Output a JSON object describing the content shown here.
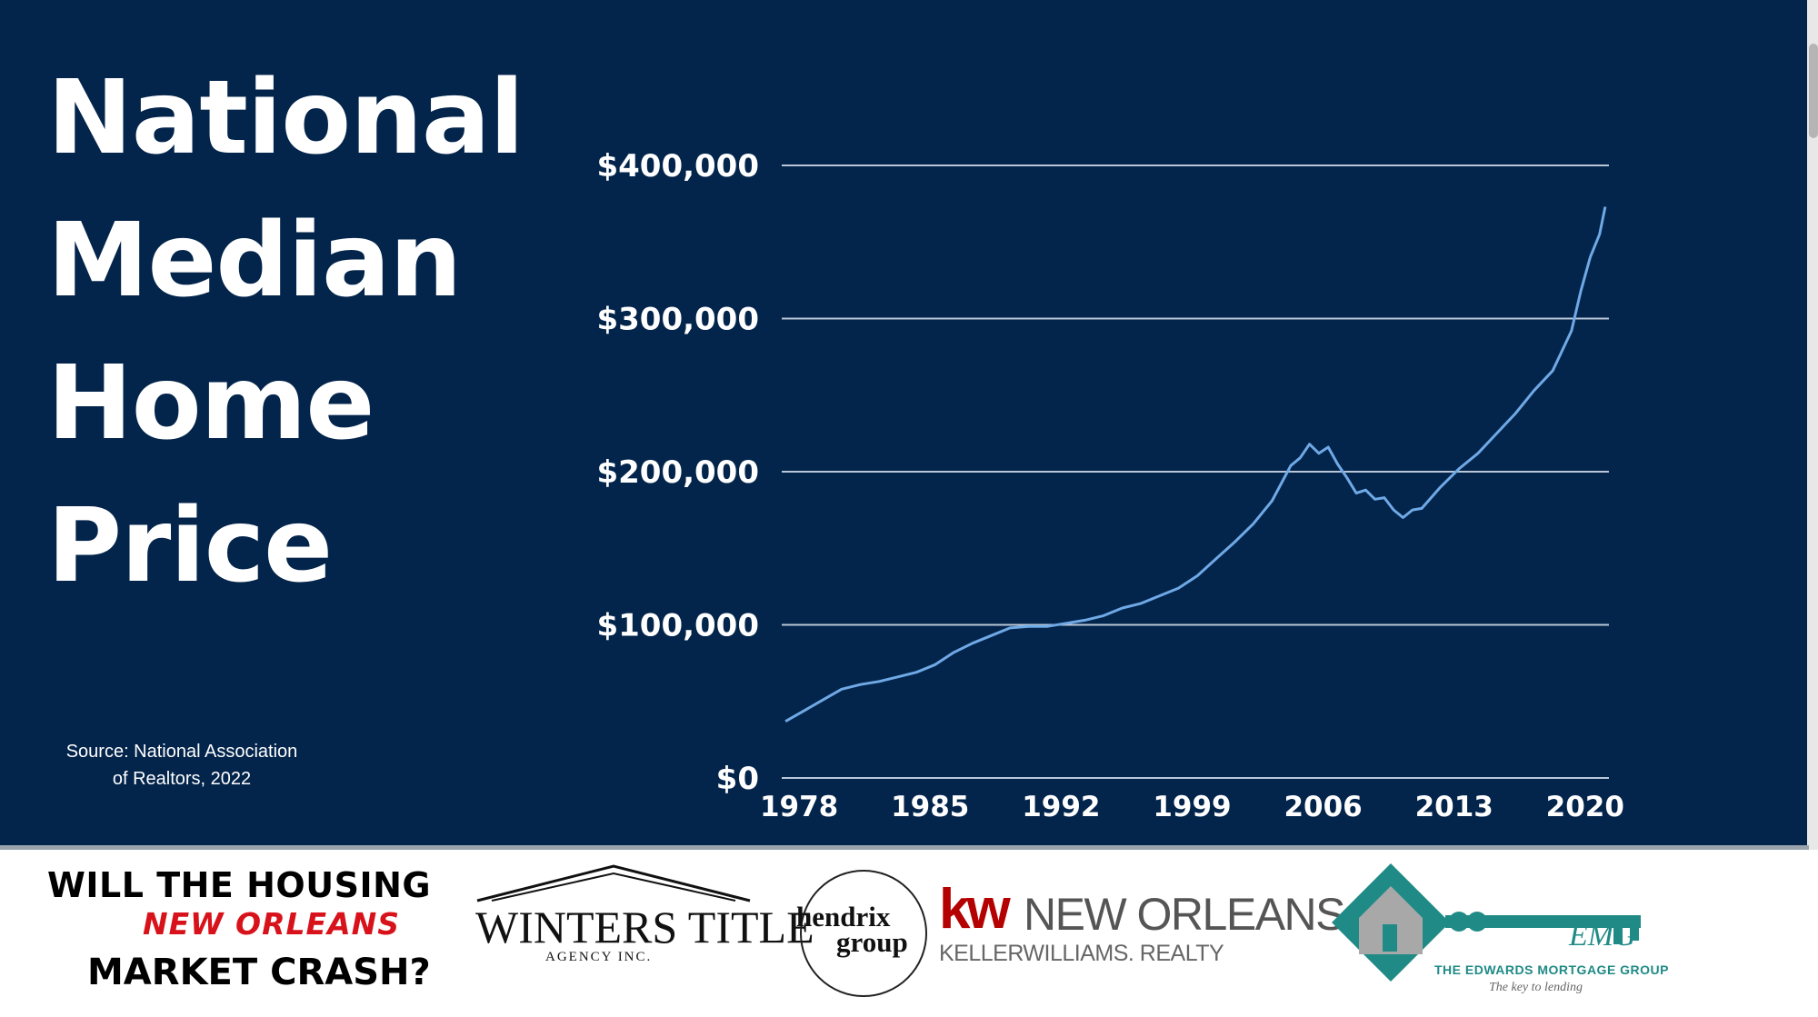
{
  "slide": {
    "title_lines": [
      "National",
      "Median",
      "Home",
      "Price"
    ],
    "source_lines": [
      "Source: National Association",
      "of Realtors, 2022"
    ]
  },
  "colors": {
    "background": "#03244b",
    "line": "#6fa9e6",
    "gridline": "#b9c7d8",
    "text": "#ffffff"
  },
  "chart_data": {
    "type": "line",
    "title": "National Median Home Price",
    "xlabel": "",
    "ylabel": "",
    "ylim": [
      0,
      400000
    ],
    "xlim": [
      1977.8,
      2022.0
    ],
    "y_ticks": [
      0,
      100000,
      200000,
      300000,
      400000
    ],
    "y_tick_labels": [
      "$0",
      "$100,000",
      "$200,000",
      "$300,000",
      "$400,000"
    ],
    "x_ticks": [
      1978,
      1985,
      1992,
      1999,
      2006,
      2013,
      2020
    ],
    "x_tick_labels": [
      "1978",
      "1985",
      "1992",
      "1999",
      "2006",
      "2013",
      "2020"
    ],
    "grid": true,
    "legend": "none",
    "series": [
      {
        "x": [
          1978.0,
          1979.0,
          1980.0,
          1981.0,
          1982.0,
          1983.0,
          1984.0,
          1985.0,
          1986.0,
          1987.0,
          1988.0,
          1989.0,
          1990.0,
          1991.0,
          1992.0,
          1993.0,
          1994.0,
          1995.0,
          1996.0,
          1997.0,
          1998.0,
          1999.0,
          2000.0,
          2001.0,
          2002.0,
          2003.0,
          2004.0,
          2005.0,
          2005.5,
          2006.0,
          2006.5,
          2007.0,
          2007.5,
          2008.0,
          2008.5,
          2009.0,
          2009.5,
          2010.0,
          2010.5,
          2011.0,
          2011.5,
          2012.0,
          2012.5,
          2013.0,
          2014.0,
          2015.0,
          2016.0,
          2017.0,
          2018.0,
          2019.0,
          2020.0,
          2020.5,
          2021.0,
          2021.5,
          2021.8
        ],
        "y": [
          37000,
          44000,
          51000,
          58000,
          61000,
          63000,
          66000,
          69000,
          74000,
          82000,
          88000,
          93000,
          98000,
          99000,
          99000,
          101000,
          103000,
          106000,
          111000,
          114000,
          119000,
          124000,
          132000,
          143000,
          154000,
          166000,
          181000,
          204000,
          209000,
          218000,
          212000,
          216000,
          205000,
          196000,
          186000,
          188000,
          182000,
          183000,
          175000,
          170000,
          175000,
          176000,
          183000,
          190000,
          202000,
          212000,
          225000,
          238000,
          253000,
          266000,
          292000,
          318000,
          340000,
          355000,
          373000
        ]
      }
    ]
  },
  "footer": {
    "crash_logo": {
      "line1": "WILL THE HOUSING",
      "line2": "NEW ORLEANS",
      "line3": "MARKET CRASH?"
    },
    "winters": {
      "name": "WINTERS TITLE",
      "sub": "AGENCY INC."
    },
    "hendrix": {
      "line1": "hendrix",
      "line2": "group"
    },
    "kw": {
      "mark": "kw",
      "city": "NEW ORLEANS",
      "sub": "KELLERWILLIAMS. REALTY",
      "brand_color": "#b40101"
    },
    "emg": {
      "abbr": "EMG",
      "name": "THE EDWARDS MORTGAGE GROUP",
      "tagline": "The key to lending",
      "brand_color": "#1f8a86"
    }
  }
}
